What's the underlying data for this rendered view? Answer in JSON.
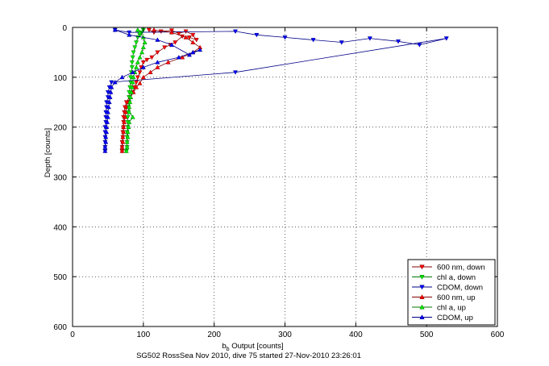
{
  "chart_data": {
    "type": "scatter",
    "title": "",
    "xlabel_main": "b",
    "xlabel_sub": "b",
    "xlabel_rest": " Output [counts]",
    "ylabel": "Depth [counts]",
    "xlim": [
      0,
      600
    ],
    "ylim": [
      0,
      600
    ],
    "y_reversed": true,
    "grid": true,
    "x_ticks": [
      "0",
      "100",
      "200",
      "300",
      "400",
      "500",
      "600"
    ],
    "y_ticks": [
      "0",
      "100",
      "200",
      "300",
      "400",
      "500",
      "600"
    ],
    "legend_position": "bottom-right",
    "footer": "SG502 RossSea Nov 2010, dive 75 started 27-Nov-2010 23:26:01",
    "series": [
      {
        "name": "600 nm, down",
        "color": "#ff0000",
        "line_color": "#880000",
        "marker": "triangle-down",
        "points": [
          [
            108,
            5
          ],
          [
            115,
            10
          ],
          [
            125,
            8
          ],
          [
            140,
            6
          ],
          [
            150,
            12
          ],
          [
            160,
            8
          ],
          [
            170,
            15
          ],
          [
            175,
            25
          ],
          [
            165,
            20
          ],
          [
            155,
            18
          ],
          [
            145,
            30
          ],
          [
            138,
            35
          ],
          [
            130,
            40
          ],
          [
            120,
            50
          ],
          [
            112,
            60
          ],
          [
            105,
            65
          ],
          [
            100,
            70
          ],
          [
            97,
            80
          ],
          [
            95,
            90
          ],
          [
            92,
            100
          ],
          [
            90,
            110
          ],
          [
            88,
            120
          ],
          [
            85,
            130
          ],
          [
            80,
            140
          ],
          [
            76,
            150
          ],
          [
            74,
            160
          ],
          [
            73,
            170
          ],
          [
            72,
            180
          ],
          [
            72,
            190
          ],
          [
            72,
            200
          ],
          [
            71,
            210
          ],
          [
            71,
            220
          ],
          [
            70,
            230
          ],
          [
            70,
            240
          ],
          [
            70,
            248
          ]
        ]
      },
      {
        "name": "chl a, down",
        "color": "#00ee00",
        "line_color": "#007700",
        "marker": "triangle-down",
        "points": [
          [
            100,
            5
          ],
          [
            98,
            10
          ],
          [
            95,
            15
          ],
          [
            92,
            20
          ],
          [
            90,
            30
          ],
          [
            88,
            40
          ],
          [
            86,
            50
          ],
          [
            85,
            60
          ],
          [
            84,
            70
          ],
          [
            84,
            80
          ],
          [
            83,
            90
          ],
          [
            82,
            100
          ],
          [
            82,
            110
          ],
          [
            81,
            120
          ],
          [
            80,
            130
          ],
          [
            80,
            140
          ],
          [
            80,
            150
          ],
          [
            79,
            160
          ],
          [
            79,
            170
          ],
          [
            78,
            180
          ],
          [
            78,
            190
          ],
          [
            78,
            200
          ],
          [
            77,
            210
          ],
          [
            77,
            220
          ],
          [
            77,
            230
          ],
          [
            77,
            240
          ],
          [
            76,
            248
          ]
        ]
      },
      {
        "name": "CDOM, down",
        "color": "#0000ff",
        "line_color": "#000088",
        "marker": "triangle-down",
        "points": [
          [
            60,
            5
          ],
          [
            80,
            10
          ],
          [
            230,
            8
          ],
          [
            260,
            15
          ],
          [
            300,
            20
          ],
          [
            340,
            25
          ],
          [
            380,
            30
          ],
          [
            420,
            22
          ],
          [
            460,
            28
          ],
          [
            490,
            35
          ],
          [
            528,
            22
          ],
          [
            230,
            90
          ],
          [
            55,
            110
          ],
          [
            52,
            120
          ],
          [
            50,
            130
          ],
          [
            50,
            140
          ],
          [
            48,
            150
          ],
          [
            48,
            160
          ],
          [
            47,
            170
          ],
          [
            47,
            180
          ],
          [
            47,
            190
          ],
          [
            46,
            200
          ],
          [
            46,
            210
          ],
          [
            46,
            220
          ],
          [
            46,
            230
          ],
          [
            46,
            240
          ],
          [
            46,
            248
          ]
        ]
      },
      {
        "name": "600 nm, up",
        "color": "#ff0000",
        "line_color": "#880000",
        "marker": "triangle-up",
        "points": [
          [
            70,
            248
          ],
          [
            70,
            240
          ],
          [
            71,
            230
          ],
          [
            71,
            220
          ],
          [
            72,
            210
          ],
          [
            72,
            200
          ],
          [
            73,
            190
          ],
          [
            74,
            180
          ],
          [
            75,
            170
          ],
          [
            76,
            160
          ],
          [
            78,
            150
          ],
          [
            82,
            140
          ],
          [
            86,
            130
          ],
          [
            90,
            120
          ],
          [
            95,
            112
          ],
          [
            100,
            100
          ],
          [
            110,
            90
          ],
          [
            120,
            80
          ],
          [
            135,
            70
          ],
          [
            155,
            60
          ],
          [
            170,
            50
          ],
          [
            180,
            40
          ],
          [
            170,
            30
          ],
          [
            160,
            20
          ],
          [
            140,
            10
          ],
          [
            115,
            5
          ]
        ]
      },
      {
        "name": "chl a, up",
        "color": "#00ee00",
        "line_color": "#007700",
        "marker": "triangle-up",
        "points": [
          [
            76,
            248
          ],
          [
            77,
            240
          ],
          [
            77,
            230
          ],
          [
            78,
            220
          ],
          [
            78,
            210
          ],
          [
            79,
            200
          ],
          [
            80,
            190
          ],
          [
            85,
            180
          ],
          [
            80,
            170
          ],
          [
            80,
            160
          ],
          [
            81,
            150
          ],
          [
            82,
            140
          ],
          [
            83,
            130
          ],
          [
            84,
            120
          ],
          [
            85,
            110
          ],
          [
            86,
            100
          ],
          [
            88,
            90
          ],
          [
            90,
            80
          ],
          [
            92,
            70
          ],
          [
            95,
            60
          ],
          [
            98,
            50
          ],
          [
            100,
            40
          ],
          [
            102,
            30
          ],
          [
            100,
            20
          ],
          [
            95,
            10
          ],
          [
            92,
            5
          ]
        ]
      },
      {
        "name": "CDOM, up",
        "color": "#0000ff",
        "line_color": "#000088",
        "marker": "triangle-up",
        "points": [
          [
            46,
            248
          ],
          [
            46,
            240
          ],
          [
            47,
            230
          ],
          [
            47,
            220
          ],
          [
            48,
            210
          ],
          [
            48,
            200
          ],
          [
            49,
            190
          ],
          [
            50,
            180
          ],
          [
            50,
            170
          ],
          [
            51,
            160
          ],
          [
            52,
            150
          ],
          [
            53,
            140
          ],
          [
            54,
            130
          ],
          [
            55,
            120
          ],
          [
            60,
            110
          ],
          [
            70,
            100
          ],
          [
            85,
            90
          ],
          [
            100,
            80
          ],
          [
            120,
            70
          ],
          [
            150,
            60
          ],
          [
            170,
            50
          ],
          [
            180,
            45
          ],
          [
            165,
            55
          ],
          [
            140,
            35
          ],
          [
            120,
            25
          ],
          [
            80,
            15
          ],
          [
            60,
            5
          ]
        ]
      }
    ]
  }
}
